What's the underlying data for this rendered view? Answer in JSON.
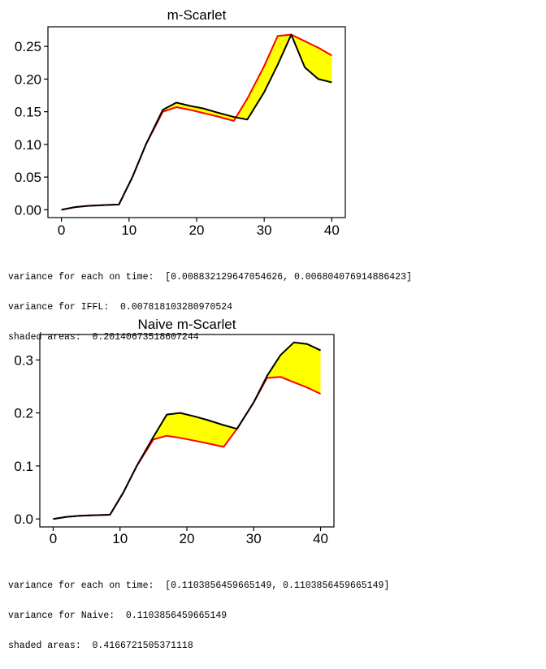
{
  "chart_data": [
    {
      "type": "line",
      "title": "m-Scarlet",
      "xlim": [
        -2,
        42
      ],
      "ylim": [
        -0.012,
        0.28
      ],
      "xticks": [
        0,
        10,
        20,
        30,
        40
      ],
      "xtick_labels": [
        "0",
        "10",
        "20",
        "30",
        "40"
      ],
      "yticks": [
        0.0,
        0.05,
        0.1,
        0.15,
        0.2,
        0.25
      ],
      "ytick_labels": [
        "0.00",
        "0.05",
        "0.10",
        "0.15",
        "0.20",
        "0.25"
      ],
      "grid": false,
      "fill_between_series": "#ffff00",
      "series": [
        {
          "color": "#ff0000",
          "x": [
            0,
            2,
            4,
            6,
            8.5,
            10.5,
            12.5,
            15,
            17,
            19,
            21,
            23,
            25.5,
            27.5,
            30,
            32,
            34,
            36,
            38,
            40
          ],
          "y": [
            0.0,
            0.004,
            0.006,
            0.007,
            0.008,
            0.05,
            0.1,
            0.15,
            0.157,
            0.153,
            0.148,
            0.143,
            0.136,
            0.17,
            0.22,
            0.266,
            0.268,
            0.258,
            0.248,
            0.236
          ]
        },
        {
          "color": "#000000",
          "x": [
            0,
            2,
            4,
            6,
            8.5,
            10.5,
            12.5,
            15,
            17,
            19,
            21,
            23,
            25.5,
            27.5,
            30,
            32,
            34,
            36,
            38,
            40
          ],
          "y": [
            0.0,
            0.004,
            0.006,
            0.007,
            0.008,
            0.05,
            0.1,
            0.153,
            0.164,
            0.159,
            0.155,
            0.149,
            0.142,
            0.138,
            0.18,
            0.222,
            0.268,
            0.218,
            0.2,
            0.195
          ]
        }
      ]
    },
    {
      "type": "line",
      "title": "Naive m-Scarlet",
      "xlim": [
        -2,
        42
      ],
      "ylim": [
        -0.015,
        0.348
      ],
      "xticks": [
        0,
        10,
        20,
        30,
        40
      ],
      "xtick_labels": [
        "0",
        "10",
        "20",
        "30",
        "40"
      ],
      "yticks": [
        0.0,
        0.1,
        0.2,
        0.3
      ],
      "ytick_labels": [
        "0.0",
        "0.1",
        "0.2",
        "0.3"
      ],
      "grid": false,
      "fill_between_series": "#ffff00",
      "series": [
        {
          "color": "#ff0000",
          "x": [
            0,
            2,
            4,
            6,
            8.5,
            10.5,
            12.5,
            15,
            17,
            19,
            21,
            23,
            25.5,
            27.5,
            30,
            32,
            34,
            36,
            38,
            40
          ],
          "y": [
            0.0,
            0.004,
            0.006,
            0.007,
            0.008,
            0.05,
            0.1,
            0.15,
            0.157,
            0.153,
            0.148,
            0.143,
            0.136,
            0.17,
            0.22,
            0.266,
            0.268,
            0.258,
            0.248,
            0.236
          ]
        },
        {
          "color": "#000000",
          "x": [
            0,
            2,
            4,
            6,
            8.5,
            10.5,
            12.5,
            15,
            17,
            19,
            21,
            23,
            25.5,
            27.5,
            30,
            32,
            34,
            36,
            38,
            40
          ],
          "y": [
            0.0,
            0.004,
            0.006,
            0.007,
            0.008,
            0.05,
            0.1,
            0.155,
            0.197,
            0.2,
            0.194,
            0.187,
            0.177,
            0.17,
            0.22,
            0.27,
            0.309,
            0.333,
            0.33,
            0.318
          ]
        }
      ]
    }
  ],
  "outputs": [
    {
      "line1": "variance for each on time:  [0.008832129647054626, 0.006804076914886423]",
      "line2": "variance for IFFL:  0.007818103280970524",
      "line3": "shaded areas:  0.20140673518607244"
    },
    {
      "line1": "variance for each on time:  [0.1103856459665149, 0.1103856459665149]",
      "line2": "variance for Naive:  0.1103856459665149",
      "line3": "shaded areas:  0.4166721505371118"
    }
  ]
}
